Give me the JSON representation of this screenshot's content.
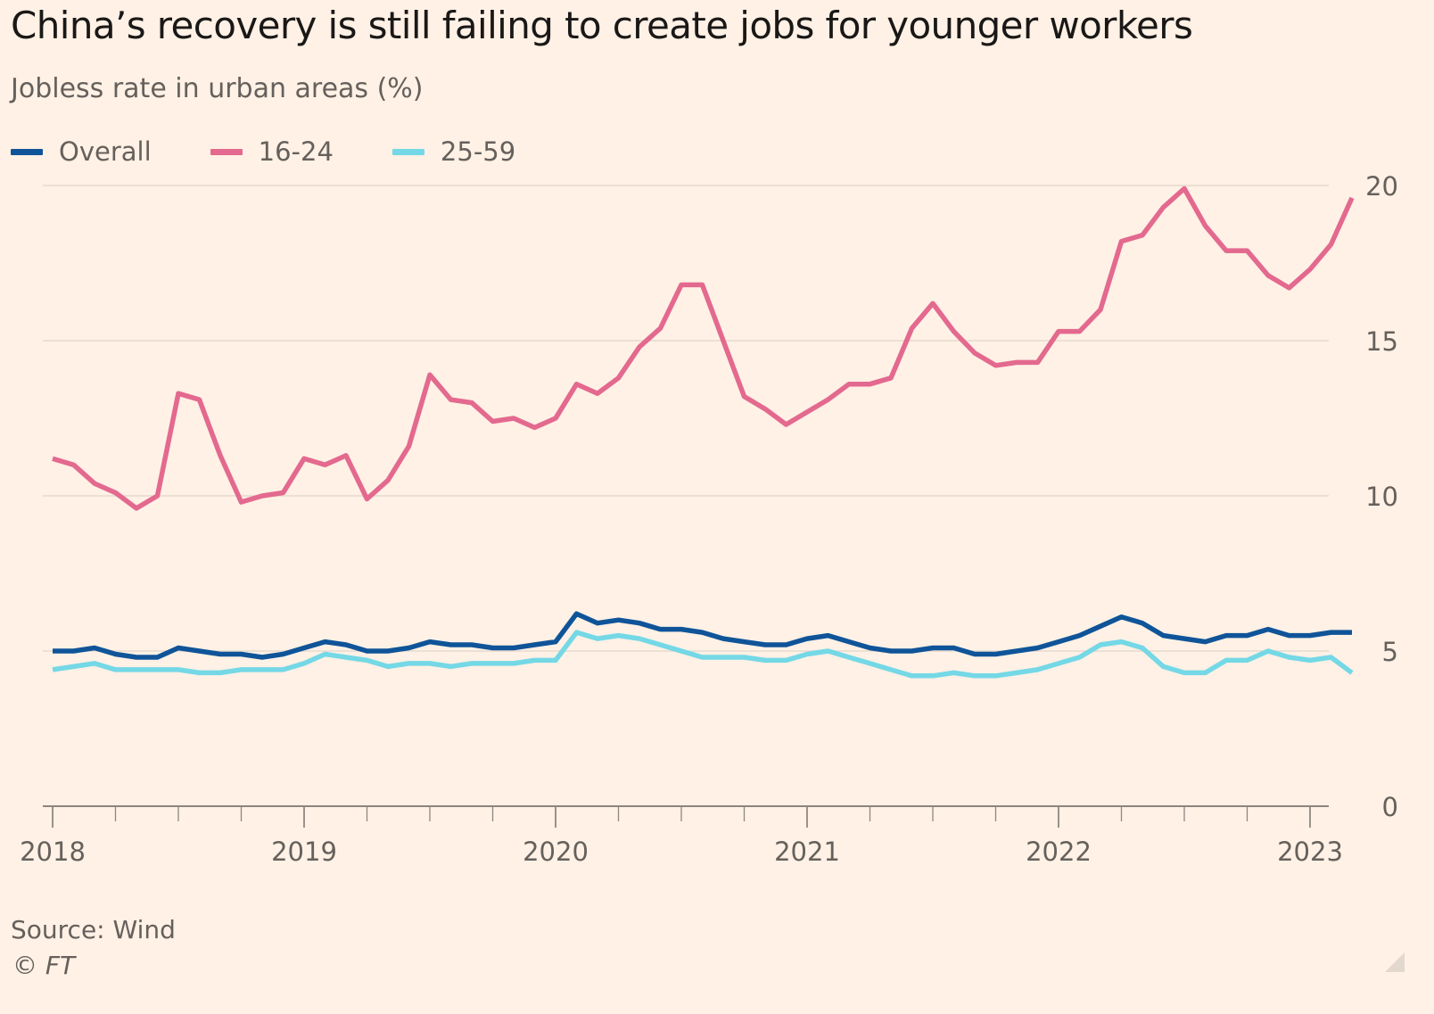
{
  "chart_data": {
    "type": "line",
    "title": "China’s recovery is still failing to create jobs for younger workers",
    "subtitle": "Jobless rate in urban areas (%)",
    "source": "Source: Wind",
    "copyright": "© FT",
    "x_tick_labels": [
      "2018",
      "2019",
      "2020",
      "2021",
      "2022",
      "2023"
    ],
    "y_tick_labels": [
      "0",
      "5",
      "10",
      "15",
      "20"
    ],
    "y_ticks": [
      0,
      5,
      10,
      15,
      20
    ],
    "ylim": [
      0,
      20
    ],
    "x_start": "2018-01",
    "legend_position": "top-left",
    "grid": "horizontal",
    "x": [
      "2018-01",
      "2018-02",
      "2018-03",
      "2018-04",
      "2018-05",
      "2018-06",
      "2018-07",
      "2018-08",
      "2018-09",
      "2018-10",
      "2018-11",
      "2018-12",
      "2019-01",
      "2019-02",
      "2019-03",
      "2019-04",
      "2019-05",
      "2019-06",
      "2019-07",
      "2019-08",
      "2019-09",
      "2019-10",
      "2019-11",
      "2019-12",
      "2020-01",
      "2020-02",
      "2020-03",
      "2020-04",
      "2020-05",
      "2020-06",
      "2020-07",
      "2020-08",
      "2020-09",
      "2020-10",
      "2020-11",
      "2020-12",
      "2021-01",
      "2021-02",
      "2021-03",
      "2021-04",
      "2021-05",
      "2021-06",
      "2021-07",
      "2021-08",
      "2021-09",
      "2021-10",
      "2021-11",
      "2021-12",
      "2022-01",
      "2022-02",
      "2022-03",
      "2022-04",
      "2022-05",
      "2022-06",
      "2022-07",
      "2022-08",
      "2022-09",
      "2022-10",
      "2022-11",
      "2022-12",
      "2023-01",
      "2023-02",
      "2023-03"
    ],
    "series": [
      {
        "name": "Overall",
        "color": "#0f5499",
        "values": [
          5.0,
          5.0,
          5.1,
          4.9,
          4.8,
          4.8,
          5.1,
          5.0,
          4.9,
          4.9,
          4.8,
          4.9,
          5.1,
          5.3,
          5.2,
          5.0,
          5.0,
          5.1,
          5.3,
          5.2,
          5.2,
          5.1,
          5.1,
          5.2,
          5.3,
          6.2,
          5.9,
          6.0,
          5.9,
          5.7,
          5.7,
          5.6,
          5.4,
          5.3,
          5.2,
          5.2,
          5.4,
          5.5,
          5.3,
          5.1,
          5.0,
          5.0,
          5.1,
          5.1,
          4.9,
          4.9,
          5.0,
          5.1,
          5.3,
          5.5,
          5.8,
          6.1,
          5.9,
          5.5,
          5.4,
          5.3,
          5.5,
          5.5,
          5.7,
          5.5,
          5.5,
          5.6,
          5.6
        ]
      },
      {
        "name": "16-24",
        "color": "#e3698f",
        "values": [
          11.2,
          11.0,
          10.4,
          10.1,
          9.6,
          10.0,
          13.3,
          13.1,
          11.3,
          9.8,
          10.0,
          10.1,
          11.2,
          11.0,
          11.3,
          9.9,
          10.5,
          11.6,
          13.9,
          13.1,
          13.0,
          12.4,
          12.5,
          12.2,
          12.5,
          13.6,
          13.3,
          13.8,
          14.8,
          15.4,
          16.8,
          16.8,
          15.0,
          13.2,
          12.8,
          12.3,
          12.7,
          13.1,
          13.6,
          13.6,
          13.8,
          15.4,
          16.2,
          15.3,
          14.6,
          14.2,
          14.3,
          14.3,
          15.3,
          15.3,
          16.0,
          18.2,
          18.4,
          19.3,
          19.9,
          18.7,
          17.9,
          17.9,
          17.1,
          16.7,
          17.3,
          18.1,
          19.6
        ]
      },
      {
        "name": "25-59",
        "color": "#74d8e6",
        "values": [
          4.4,
          4.5,
          4.6,
          4.4,
          4.4,
          4.4,
          4.4,
          4.3,
          4.3,
          4.4,
          4.4,
          4.4,
          4.6,
          4.9,
          4.8,
          4.7,
          4.5,
          4.6,
          4.6,
          4.5,
          4.6,
          4.6,
          4.6,
          4.7,
          4.7,
          5.6,
          5.4,
          5.5,
          5.4,
          5.2,
          5.0,
          4.8,
          4.8,
          4.8,
          4.7,
          4.7,
          4.9,
          5.0,
          4.8,
          4.6,
          4.4,
          4.2,
          4.2,
          4.3,
          4.2,
          4.2,
          4.3,
          4.4,
          4.6,
          4.8,
          5.2,
          5.3,
          5.1,
          4.5,
          4.3,
          4.3,
          4.7,
          4.7,
          5.0,
          4.8,
          4.7,
          4.8,
          4.3
        ]
      }
    ]
  }
}
